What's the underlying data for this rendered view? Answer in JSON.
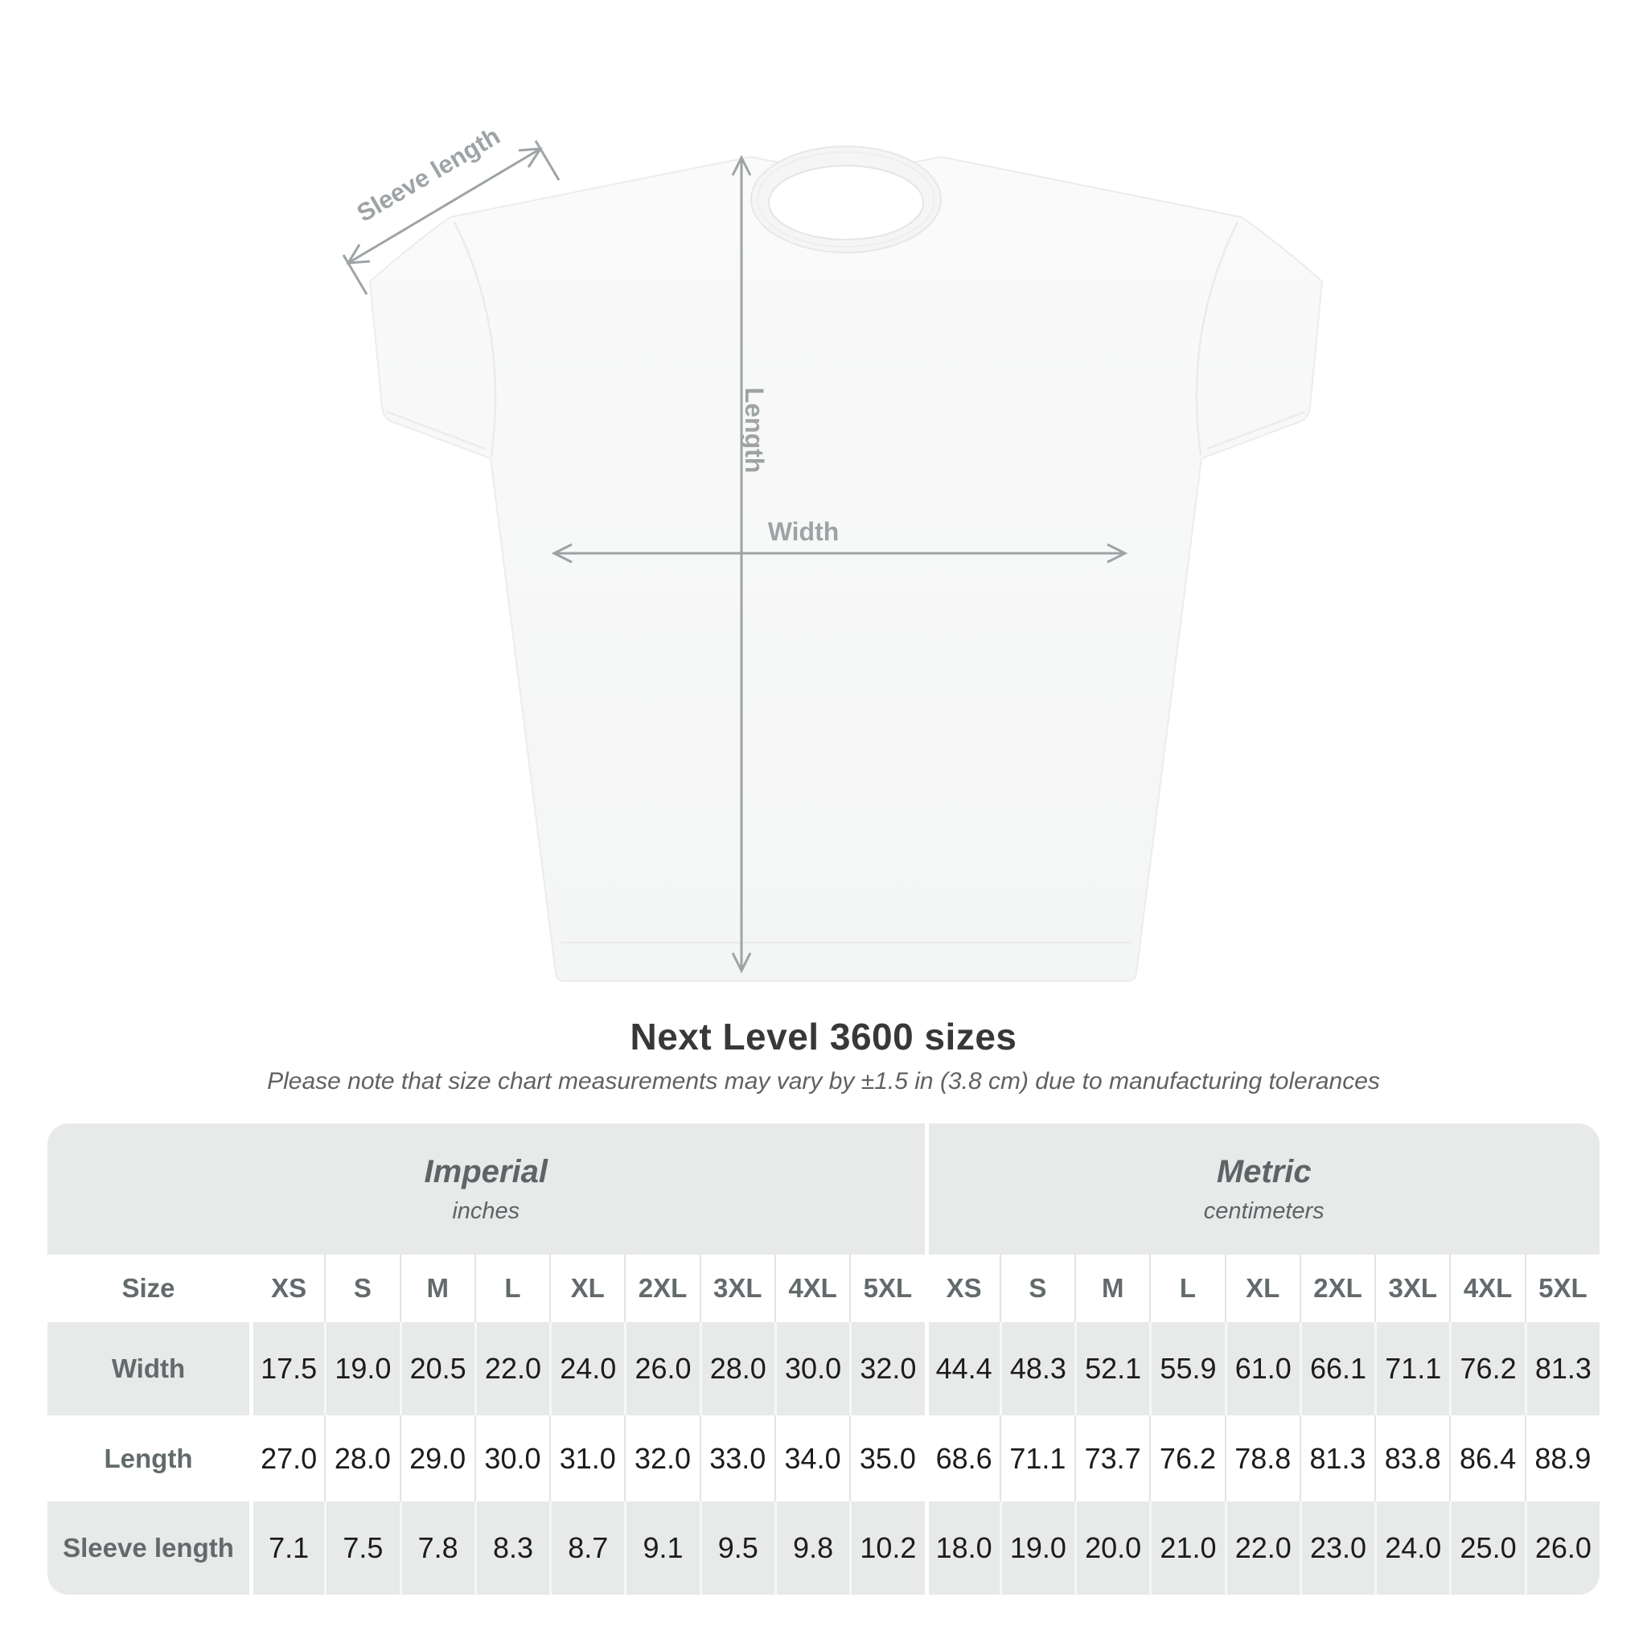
{
  "title": "Next Level 3600 sizes",
  "subtitle": "Please note that size chart measurements may vary by ±1.5 in (3.8 cm) due to manufacturing tolerances",
  "shirt_diagram": {
    "labels": {
      "sleeve": "Sleeve length",
      "length": "Length",
      "width": "Width"
    },
    "line_color": "#9ea3a5",
    "shirt_fill": "#f7f7f7"
  },
  "chart_data": {
    "type": "table",
    "title": "Next Level 3600 sizes",
    "corner_label": "Size",
    "groups": [
      {
        "label": "Imperial",
        "unit": "inches"
      },
      {
        "label": "Metric",
        "unit": "centimeters"
      }
    ],
    "sizes": [
      "XS",
      "S",
      "M",
      "L",
      "XL",
      "2XL",
      "3XL",
      "4XL",
      "5XL"
    ],
    "rows": [
      {
        "label": "Width",
        "imperial": [
          "17.5",
          "19.0",
          "20.5",
          "22.0",
          "24.0",
          "26.0",
          "28.0",
          "30.0",
          "32.0"
        ],
        "metric": [
          "44.4",
          "48.3",
          "52.1",
          "55.9",
          "61.0",
          "66.1",
          "71.1",
          "76.2",
          "81.3"
        ]
      },
      {
        "label": "Length",
        "imperial": [
          "27.0",
          "28.0",
          "29.0",
          "30.0",
          "31.0",
          "32.0",
          "33.0",
          "34.0",
          "35.0"
        ],
        "metric": [
          "68.6",
          "71.1",
          "73.7",
          "76.2",
          "78.8",
          "81.3",
          "83.8",
          "86.4",
          "88.9"
        ]
      },
      {
        "label": "Sleeve length",
        "imperial": [
          "7.1",
          "7.5",
          "7.8",
          "8.3",
          "8.7",
          "9.1",
          "9.5",
          "9.8",
          "10.2"
        ],
        "metric": [
          "18.0",
          "19.0",
          "20.0",
          "21.0",
          "22.0",
          "23.0",
          "24.0",
          "25.0",
          "26.0"
        ]
      }
    ],
    "layout": {
      "row_colors": [
        "#e8e9e9",
        "#ffffff"
      ],
      "corner_radius_px": 26
    }
  }
}
